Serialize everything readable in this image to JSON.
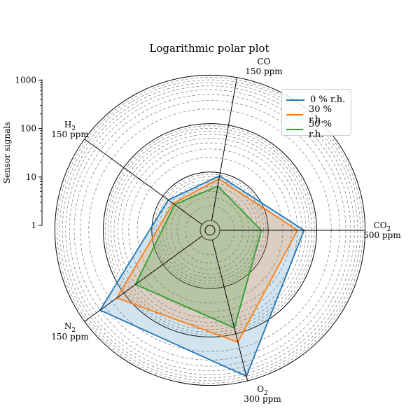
{
  "chart_data": {
    "type": "radar",
    "title": "Logarithmic polar plot",
    "scale": "log",
    "r_range": [
      1,
      1000
    ],
    "ylabel": "Sensor signals",
    "y_ticks": [
      "1",
      "10",
      "100",
      "1000"
    ],
    "axes": [
      {
        "gas": "CO",
        "sub": "",
        "conc": "150 ppm"
      },
      {
        "gas": "CO",
        "sub": "2",
        "conc": "500 ppm"
      },
      {
        "gas": "O",
        "sub": "2",
        "conc": "300 ppm"
      },
      {
        "gas": "N",
        "sub": "2",
        "conc": "150 ppm"
      },
      {
        "gas": "H",
        "sub": "2",
        "conc": "150 ppm"
      }
    ],
    "series": [
      {
        "name": "0 % r.h.",
        "color": "#1f77b4",
        "values": [
          8.7,
          55,
          800,
          400,
          7.3
        ]
      },
      {
        "name": "30 % r.h.",
        "color": "#ff7f0e",
        "values": [
          7.5,
          40,
          150,
          150,
          5.5
        ]
      },
      {
        "name": "50 % r.h.",
        "color": "#2ca02c",
        "values": [
          5.3,
          7.2,
          75,
          50,
          5
        ]
      }
    ],
    "legend": "top-right",
    "grid": true
  }
}
